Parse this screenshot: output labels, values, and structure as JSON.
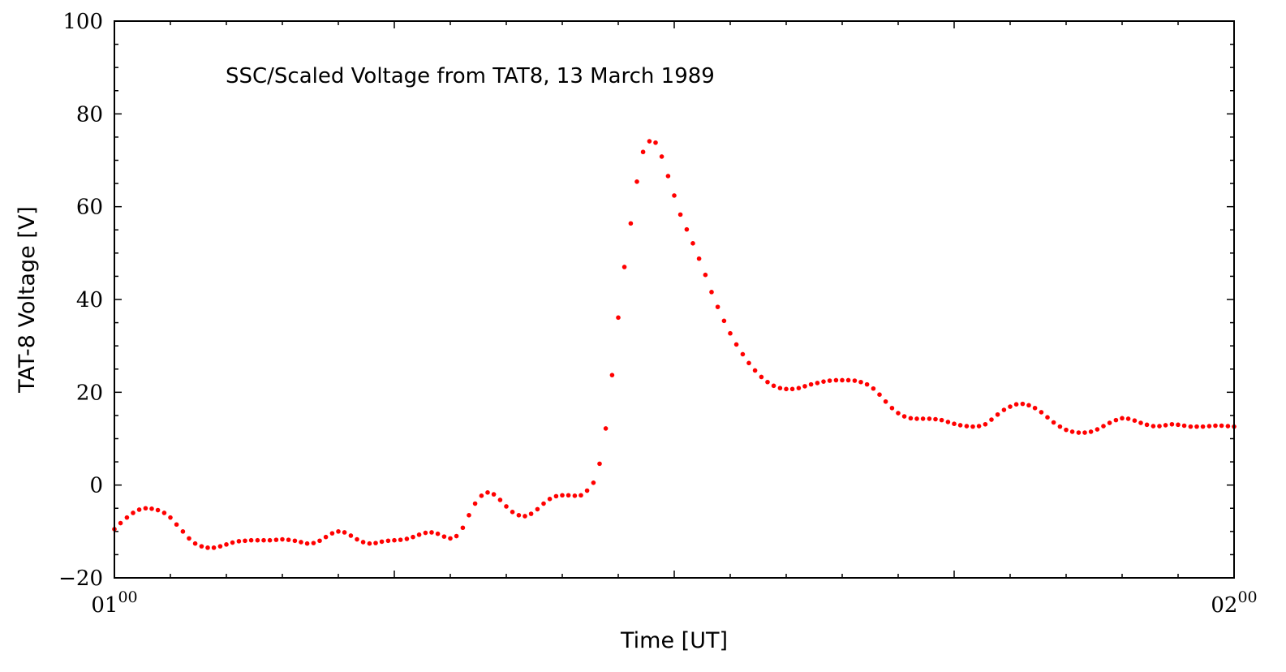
{
  "chart_data": {
    "type": "scatter",
    "annotation": "SSC/Scaled Voltage from TAT8, 13 March 1989",
    "xlabel": "Time [UT]",
    "ylabel": "TAT-8 Voltage [V]",
    "xlim": [
      0,
      60
    ],
    "ylim": [
      -20,
      100
    ],
    "x_tick_labels": [
      {
        "x": 0,
        "base": "01",
        "sup": "00"
      },
      {
        "x": 60,
        "base": "02",
        "sup": "00"
      }
    ],
    "y_major_ticks": [
      -20,
      0,
      20,
      40,
      60,
      80,
      100
    ],
    "y_minor_step": 5,
    "x_major_ticks": [
      0,
      15,
      30,
      45,
      60
    ],
    "x_minor_step": 3,
    "grid": false,
    "marker_color": "#ff0000",
    "series": [
      {
        "points": [
          [
            0.0,
            -9.5
          ],
          [
            0.33,
            -8.2
          ],
          [
            0.67,
            -7.0
          ],
          [
            1.0,
            -6.0
          ],
          [
            1.33,
            -5.3
          ],
          [
            1.67,
            -5.0
          ],
          [
            2.0,
            -5.1
          ],
          [
            2.33,
            -5.4
          ],
          [
            2.67,
            -6.0
          ],
          [
            3.0,
            -7.0
          ],
          [
            3.33,
            -8.5
          ],
          [
            3.67,
            -10.0
          ],
          [
            4.0,
            -11.5
          ],
          [
            4.33,
            -12.6
          ],
          [
            4.67,
            -13.2
          ],
          [
            5.0,
            -13.5
          ],
          [
            5.33,
            -13.5
          ],
          [
            5.67,
            -13.2
          ],
          [
            6.0,
            -12.8
          ],
          [
            6.33,
            -12.4
          ],
          [
            6.67,
            -12.1
          ],
          [
            7.0,
            -12.0
          ],
          [
            7.33,
            -11.9
          ],
          [
            7.67,
            -11.9
          ],
          [
            8.0,
            -11.9
          ],
          [
            8.33,
            -11.9
          ],
          [
            8.67,
            -11.8
          ],
          [
            9.0,
            -11.7
          ],
          [
            9.33,
            -11.8
          ],
          [
            9.67,
            -12.0
          ],
          [
            10.0,
            -12.3
          ],
          [
            10.33,
            -12.6
          ],
          [
            10.67,
            -12.5
          ],
          [
            11.0,
            -12.0
          ],
          [
            11.33,
            -11.2
          ],
          [
            11.67,
            -10.4
          ],
          [
            12.0,
            -10.0
          ],
          [
            12.33,
            -10.2
          ],
          [
            12.67,
            -10.9
          ],
          [
            13.0,
            -11.7
          ],
          [
            13.33,
            -12.3
          ],
          [
            13.67,
            -12.6
          ],
          [
            14.0,
            -12.5
          ],
          [
            14.33,
            -12.2
          ],
          [
            14.67,
            -12.0
          ],
          [
            15.0,
            -11.9
          ],
          [
            15.33,
            -11.8
          ],
          [
            15.67,
            -11.6
          ],
          [
            16.0,
            -11.2
          ],
          [
            16.33,
            -10.7
          ],
          [
            16.67,
            -10.3
          ],
          [
            17.0,
            -10.2
          ],
          [
            17.33,
            -10.5
          ],
          [
            17.67,
            -11.1
          ],
          [
            18.0,
            -11.5
          ],
          [
            18.33,
            -11.0
          ],
          [
            18.67,
            -9.2
          ],
          [
            19.0,
            -6.5
          ],
          [
            19.33,
            -4.0
          ],
          [
            19.67,
            -2.3
          ],
          [
            20.0,
            -1.6
          ],
          [
            20.33,
            -2.0
          ],
          [
            20.67,
            -3.2
          ],
          [
            21.0,
            -4.6
          ],
          [
            21.33,
            -5.8
          ],
          [
            21.67,
            -6.5
          ],
          [
            22.0,
            -6.7
          ],
          [
            22.33,
            -6.2
          ],
          [
            22.67,
            -5.2
          ],
          [
            23.0,
            -4.0
          ],
          [
            23.33,
            -3.0
          ],
          [
            23.67,
            -2.4
          ],
          [
            24.0,
            -2.2
          ],
          [
            24.33,
            -2.2
          ],
          [
            24.67,
            -2.3
          ],
          [
            25.0,
            -2.2
          ],
          [
            25.33,
            -1.2
          ],
          [
            25.67,
            0.5
          ],
          [
            26.0,
            4.6
          ],
          [
            26.33,
            12.2
          ],
          [
            26.67,
            23.7
          ],
          [
            27.0,
            36.1
          ],
          [
            27.33,
            47.0
          ],
          [
            27.67,
            56.4
          ],
          [
            28.0,
            65.4
          ],
          [
            28.33,
            71.8
          ],
          [
            28.67,
            74.1
          ],
          [
            29.0,
            73.8
          ],
          [
            29.33,
            70.8
          ],
          [
            29.67,
            66.6
          ],
          [
            30.0,
            62.4
          ],
          [
            30.33,
            58.3
          ],
          [
            30.67,
            55.1
          ],
          [
            31.0,
            52.1
          ],
          [
            31.33,
            48.8
          ],
          [
            31.67,
            45.3
          ],
          [
            32.0,
            41.6
          ],
          [
            32.33,
            38.4
          ],
          [
            32.67,
            35.4
          ],
          [
            33.0,
            32.7
          ],
          [
            33.33,
            30.3
          ],
          [
            33.67,
            28.2
          ],
          [
            34.0,
            26.3
          ],
          [
            34.33,
            24.7
          ],
          [
            34.67,
            23.3
          ],
          [
            35.0,
            22.2
          ],
          [
            35.33,
            21.4
          ],
          [
            35.67,
            20.9
          ],
          [
            36.0,
            20.7
          ],
          [
            36.33,
            20.7
          ],
          [
            36.67,
            20.9
          ],
          [
            37.0,
            21.3
          ],
          [
            37.33,
            21.7
          ],
          [
            37.67,
            22.0
          ],
          [
            38.0,
            22.3
          ],
          [
            38.33,
            22.5
          ],
          [
            38.67,
            22.6
          ],
          [
            39.0,
            22.6
          ],
          [
            39.33,
            22.6
          ],
          [
            39.67,
            22.5
          ],
          [
            40.0,
            22.2
          ],
          [
            40.33,
            21.7
          ],
          [
            40.67,
            20.8
          ],
          [
            41.0,
            19.5
          ],
          [
            41.33,
            18.0
          ],
          [
            41.67,
            16.6
          ],
          [
            42.0,
            15.5
          ],
          [
            42.33,
            14.8
          ],
          [
            42.67,
            14.4
          ],
          [
            43.0,
            14.3
          ],
          [
            43.33,
            14.3
          ],
          [
            43.67,
            14.3
          ],
          [
            44.0,
            14.2
          ],
          [
            44.33,
            14.0
          ],
          [
            44.67,
            13.6
          ],
          [
            45.0,
            13.2
          ],
          [
            45.33,
            12.9
          ],
          [
            45.67,
            12.7
          ],
          [
            46.0,
            12.6
          ],
          [
            46.33,
            12.7
          ],
          [
            46.67,
            13.1
          ],
          [
            47.0,
            14.1
          ],
          [
            47.33,
            15.2
          ],
          [
            47.67,
            16.2
          ],
          [
            48.0,
            16.9
          ],
          [
            48.33,
            17.4
          ],
          [
            48.67,
            17.5
          ],
          [
            49.0,
            17.2
          ],
          [
            49.33,
            16.6
          ],
          [
            49.67,
            15.7
          ],
          [
            50.0,
            14.6
          ],
          [
            50.33,
            13.5
          ],
          [
            50.67,
            12.6
          ],
          [
            51.0,
            11.9
          ],
          [
            51.33,
            11.5
          ],
          [
            51.67,
            11.3
          ],
          [
            52.0,
            11.3
          ],
          [
            52.33,
            11.5
          ],
          [
            52.67,
            12.0
          ],
          [
            53.0,
            12.7
          ],
          [
            53.33,
            13.4
          ],
          [
            53.67,
            14.0
          ],
          [
            54.0,
            14.4
          ],
          [
            54.33,
            14.3
          ],
          [
            54.67,
            13.9
          ],
          [
            55.0,
            13.4
          ],
          [
            55.33,
            13.0
          ],
          [
            55.67,
            12.7
          ],
          [
            56.0,
            12.7
          ],
          [
            56.33,
            12.9
          ],
          [
            56.67,
            13.1
          ],
          [
            57.0,
            13.0
          ],
          [
            57.33,
            12.8
          ],
          [
            57.67,
            12.6
          ],
          [
            58.0,
            12.6
          ],
          [
            58.33,
            12.6
          ],
          [
            58.67,
            12.7
          ],
          [
            59.0,
            12.8
          ],
          [
            59.33,
            12.8
          ],
          [
            59.67,
            12.7
          ],
          [
            60.0,
            12.6
          ]
        ]
      }
    ]
  }
}
